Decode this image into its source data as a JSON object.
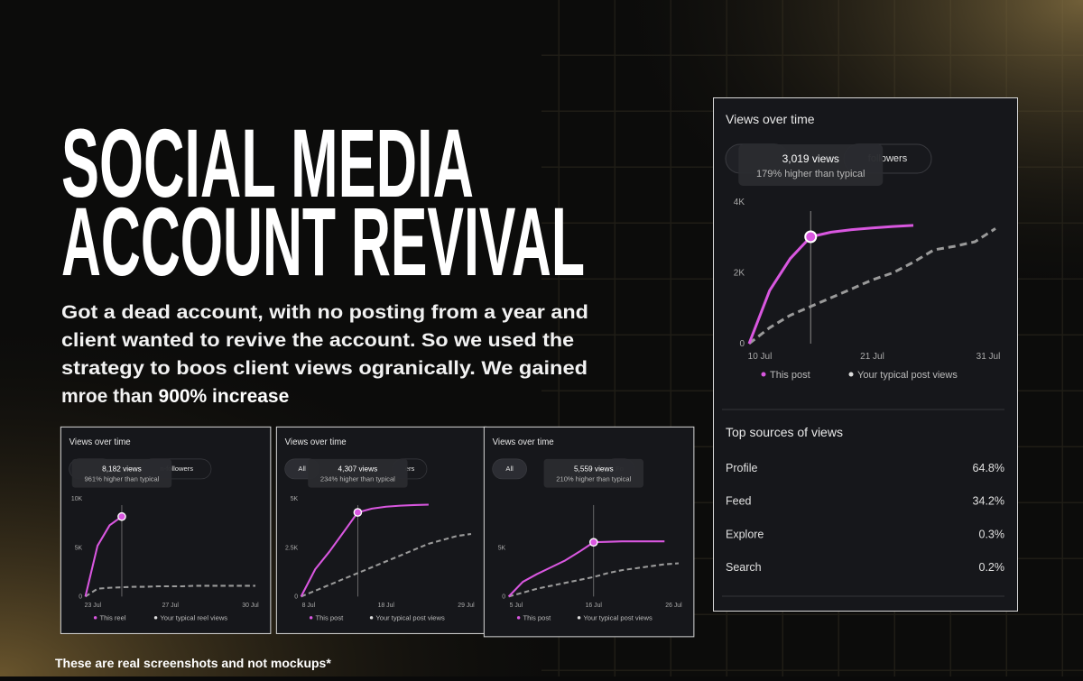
{
  "heading": [
    "SOCIAL MEDIA",
    "ACCOUNT REVIVAL"
  ],
  "description": [
    "Got a dead account, with no posting from a year and",
    "client wanted to revive the account. So we used the",
    "strategy to boos client views ogranically.  We gained",
    "mroe than"
  ],
  "highlight": "900% increase",
  "footnote": "These are real screenshots and not mockups*",
  "chart_data": [
    {
      "type": "line",
      "title": "Views over time",
      "chips": [
        "followers"
      ],
      "tooltip": {
        "views": "3,019 views",
        "change": "179% higher than typical"
      },
      "highlight_index": 3,
      "ylim": [
        0,
        4000
      ],
      "yticks": [
        0,
        {
          "value": 2000,
          "label": "2K"
        },
        {
          "value": 4000,
          "label": "4K"
        }
      ],
      "x_labels": [
        "10 Jul",
        "21 Jul",
        "31 Jul"
      ],
      "series": [
        {
          "name": "This post",
          "color": "#d957e0",
          "values": [
            0,
            1500,
            2400,
            3019,
            3150,
            3220,
            3270,
            3310,
            3340,
            null,
            null,
            null,
            null
          ]
        },
        {
          "name": "Your typical post views",
          "color": "#9a9a9a",
          "dashed": true,
          "values": [
            0,
            450,
            800,
            1050,
            1300,
            1550,
            1800,
            2000,
            2300,
            2650,
            2750,
            2880,
            3250
          ]
        }
      ]
    },
    {
      "type": "line",
      "title": "Views over time",
      "chips": [
        "n-followers"
      ],
      "tooltip": {
        "views": "8,182 views",
        "change": "961% higher than typical"
      },
      "highlight_index": 3,
      "ylim": [
        0,
        10000
      ],
      "yticks": [
        0,
        {
          "value": 5000,
          "label": "5K"
        },
        {
          "value": 10000,
          "label": "10K"
        }
      ],
      "x_labels": [
        "23 Jul",
        "27 Jul",
        "30 Jul"
      ],
      "series": [
        {
          "name": "This reel",
          "color": "#d957e0",
          "values": [
            0,
            5200,
            7300,
            8182,
            null,
            null,
            null,
            null,
            null,
            null,
            null,
            null,
            null,
            null,
            null
          ]
        },
        {
          "name": "Your typical reel views",
          "color": "#9a9a9a",
          "dashed": true,
          "values": [
            0,
            800,
            900,
            950,
            1000,
            1000,
            1050,
            1050,
            1050,
            1100,
            1100,
            1100,
            1100,
            1100,
            1100
          ]
        }
      ]
    },
    {
      "type": "line",
      "title": "Views over time",
      "chips": [
        "All",
        "ers"
      ],
      "tooltip": {
        "views": "4,307 views",
        "change": "234% higher than typical"
      },
      "highlight_index": 4,
      "ylim": [
        0,
        5000
      ],
      "yticks": [
        0,
        {
          "value": 2500,
          "label": "2.5K"
        },
        {
          "value": 5000,
          "label": "5K"
        }
      ],
      "x_labels": [
        "8 Jul",
        "18 Jul",
        "29 Jul"
      ],
      "series": [
        {
          "name": "This post",
          "color": "#d957e0",
          "values": [
            0,
            1400,
            2300,
            3300,
            4307,
            4500,
            4600,
            4650,
            4680,
            4700,
            null,
            null,
            null
          ]
        },
        {
          "name": "Your typical post views",
          "color": "#9a9a9a",
          "dashed": true,
          "values": [
            0,
            300,
            600,
            900,
            1200,
            1500,
            1800,
            2100,
            2400,
            2700,
            2900,
            3100,
            3200
          ]
        }
      ]
    },
    {
      "type": "line",
      "title": "Views over time",
      "chips": [
        "All",
        "Fo"
      ],
      "tooltip": {
        "views": "5,559 views",
        "change": "210% higher than typical"
      },
      "highlight_index": 6,
      "ylim": [
        0,
        10000
      ],
      "yticks": [
        0,
        {
          "value": 5000,
          "label": "5K"
        }
      ],
      "x_labels": [
        "5 Jul",
        "16 Jul",
        "26 Jul"
      ],
      "series": [
        {
          "name": "This post",
          "color": "#d957e0",
          "values": [
            0,
            1500,
            2300,
            3000,
            3700,
            4600,
            5559,
            5600,
            5650,
            5650,
            5650,
            5650,
            null
          ]
        },
        {
          "name": "Your typical post views",
          "color": "#9a9a9a",
          "dashed": true,
          "values": [
            0,
            400,
            800,
            1100,
            1400,
            1700,
            2000,
            2400,
            2700,
            2900,
            3100,
            3300,
            3400
          ]
        }
      ]
    }
  ],
  "sources": {
    "title": "Top sources of views",
    "rows": [
      [
        "Profile",
        "64.8%"
      ],
      [
        "Feed",
        "34.2%"
      ],
      [
        "Explore",
        "0.3%"
      ],
      [
        "Search",
        "0.2%"
      ]
    ]
  }
}
